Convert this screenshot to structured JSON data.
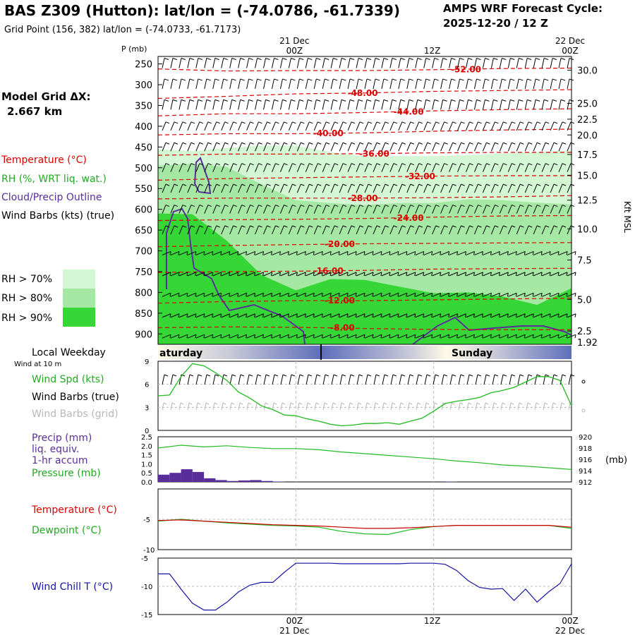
{
  "header": {
    "title": "BAS Z309 (Hutton):  lat/lon = (-74.0786, -61.7339)",
    "subtitle": "Grid Point (156, 382) lat/lon = (-74.0733, -61.7173)",
    "cycle_label": "AMPS WRF Forecast Cycle:",
    "cycle_value": "2025-12-20 / 12  Z"
  },
  "left_legend": {
    "model_grid_label": "Model Grid ΔX:",
    "model_grid_value": "2.667 km",
    "temperature": "Temperature (°C)",
    "rh": "RH (%, WRT liq. wat.)",
    "cloud": "Cloud/Precip Outline",
    "wind_barbs": "Wind Barbs (kts) (true)",
    "rh70": "RH > 70%",
    "rh80": "RH > 80%",
    "rh90": "RH > 90%",
    "local_weekday": "Local Weekday",
    "wind_at_10m": "Wind at 10 m",
    "wind_spd": "Wind Spd (kts)",
    "wind_barbs_true": "Wind Barbs (true)",
    "wind_barbs_grid": "Wind Barbs (grid)",
    "precip": "Precip (mm)",
    "liq_equiv": "liq. equiv.",
    "accum": "1-hr accum",
    "pressure": "Pressure (mb)",
    "temperature2": "Temperature (°C)",
    "dewpoint": "Dewpoint (°C)",
    "wind_chill": "Wind Chill T (°C)"
  },
  "time_axis": {
    "top_labels": [
      {
        "date": "21 Dec",
        "hour": "00Z",
        "hour_index": 12
      },
      {
        "date": "",
        "hour": "12Z",
        "hour_index": 24
      },
      {
        "date": "22 Dec",
        "hour": "00Z",
        "hour_index": 36
      }
    ],
    "pressure_axis_title": "P (mb)",
    "height_axis_title": "Kft MSL"
  },
  "weekday_bar": {
    "left_label": "aturday",
    "right_label": "Sunday"
  },
  "colors": {
    "temp_contour": "#dd0000",
    "rh70": "#d4f7d4",
    "rh80": "#a4e8a4",
    "rh90": "#36d636",
    "cloud": "#5a2e9a",
    "wind_line": "#22bb22",
    "precip_bar": "#5a2e9a",
    "wind_chill": "#1515a0",
    "temp_line": "#cc0000",
    "dew_line": "#22bb22"
  },
  "chart_data": [
    {
      "type": "heatmap",
      "title": "Time-height cross section",
      "x_range_hours": [
        0,
        36
      ],
      "ylabel": "P (mb)",
      "pressure_ticks": [
        250,
        300,
        350,
        400,
        450,
        500,
        550,
        600,
        650,
        700,
        750,
        800,
        850,
        900
      ],
      "height_ticks_kft": [
        {
          "label": "30.0",
          "p": 265
        },
        {
          "label": "25.0",
          "p": 345
        },
        {
          "label": "22.5",
          "p": 383
        },
        {
          "label": "20.0",
          "p": 421
        },
        {
          "label": "17.5",
          "p": 468
        },
        {
          "label": "15.0",
          "p": 518
        },
        {
          "label": "12.5",
          "p": 578
        },
        {
          "label": "10.0",
          "p": 647
        },
        {
          "label": "7.5",
          "p": 722
        },
        {
          "label": "5.0",
          "p": 817
        },
        {
          "label": "2.5",
          "p": 893
        }
      ],
      "surface_height_label": "1.92",
      "temperature_contours": [
        {
          "label": "-52.00",
          "label_hour": 25.5,
          "pressures": [
            262,
            267,
            266,
            266,
            264,
            261,
            260
          ]
        },
        {
          "label": "-48.00",
          "label_hour": 16.5,
          "pressures": [
            333,
            328,
            322,
            320,
            316,
            314,
            312
          ]
        },
        {
          "label": "-44.00",
          "label_hour": 20.5,
          "pressures": [
            375,
            370,
            370,
            367,
            363,
            360,
            358
          ]
        },
        {
          "label": "-40.00",
          "label_hour": 13.5,
          "pressures": [
            421,
            418,
            418,
            416,
            412,
            409,
            407
          ]
        },
        {
          "label": "-36.00",
          "label_hour": 17.5,
          "pressures": [
            470,
            467,
            467,
            466,
            464,
            463,
            463
          ]
        },
        {
          "label": "-32.00",
          "label_hour": 21.5,
          "pressures": [
            530,
            526,
            524,
            522,
            520,
            519,
            519
          ]
        },
        {
          "label": "-28.00",
          "label_hour": 16.5,
          "pressures": [
            575,
            573,
            573,
            573,
            572,
            570,
            567
          ]
        },
        {
          "label": "-24.00",
          "label_hour": 20.5,
          "pressures": [
            627,
            625,
            624,
            622,
            619,
            616,
            615
          ]
        },
        {
          "label": "-20.00",
          "label_hour": 14.5,
          "pressures": [
            690,
            687,
            685,
            683,
            682,
            681,
            680
          ]
        },
        {
          "label": "-16.00",
          "label_hour": 13.5,
          "pressures": [
            752,
            750,
            749,
            747,
            744,
            743,
            742
          ]
        },
        {
          "label": "-12.00",
          "label_hour": 14.5,
          "pressures": [
            826,
            822,
            820,
            820,
            818,
            816,
            814
          ]
        },
        {
          "label": "-8.00",
          "label_hour": 15.0,
          "pressures": [
            885,
            883,
            884,
            887,
            889,
            890,
            890
          ]
        }
      ],
      "rh70_top_pressure": [
        455,
        460,
        452,
        447,
        447,
        462,
        473,
        472,
        472,
        470,
        465,
        462,
        458
      ],
      "rh80_top_pressure": [
        495,
        490,
        498,
        540,
        578,
        585,
        590,
        585,
        585,
        576,
        578,
        584,
        588
      ],
      "rh90_top_pressure": [
        610,
        612,
        676,
        758,
        795,
        768,
        770,
        786,
        802,
        800,
        810,
        830,
        790
      ]
    },
    {
      "type": "line",
      "title": "Wind at 10 m",
      "ylabel": "Wind Spd (kts)",
      "ylim": [
        0,
        9
      ],
      "yticks": [
        0,
        3,
        6,
        9
      ],
      "x_hours": [
        0,
        1,
        2,
        3,
        4,
        5,
        6,
        7,
        8,
        9,
        10,
        11,
        12,
        13,
        14,
        15,
        16,
        17,
        18,
        19,
        20,
        21,
        22,
        23,
        24,
        25,
        26,
        27,
        28,
        29,
        30,
        31,
        32,
        33,
        34,
        35,
        36
      ],
      "values": [
        4.5,
        4.6,
        7.0,
        8.7,
        8.4,
        7.5,
        6.5,
        5.0,
        4.2,
        3.2,
        2.7,
        2.0,
        1.9,
        1.5,
        1.2,
        0.8,
        0.6,
        0.7,
        0.9,
        0.9,
        1.0,
        0.8,
        1.2,
        1.6,
        2.5,
        3.5,
        3.8,
        4.0,
        4.3,
        4.9,
        5.2,
        5.6,
        6.3,
        7.0,
        7.0,
        6.5,
        3.2
      ]
    },
    {
      "type": "line",
      "title": "Precip and Pressure",
      "ylabel": "Precip (mm) / Pressure (mb)",
      "precip_ylim": [
        0,
        2.5
      ],
      "precip_ticks": [
        "0.0",
        "0.5",
        "1.0",
        "1.5",
        "2.0",
        "2.5"
      ],
      "pressure_ylim": [
        912,
        920
      ],
      "pressure_ticks": [
        912,
        914,
        916,
        918,
        920
      ],
      "pressure_unit": "(mb)",
      "x_hours": [
        0,
        2,
        4,
        6,
        8,
        10,
        12,
        14,
        16,
        18,
        20,
        22,
        24,
        26,
        28,
        30,
        32,
        34,
        36
      ],
      "pressure": [
        918.0,
        918.5,
        918.2,
        918.4,
        918.1,
        917.9,
        917.9,
        917.7,
        917.3,
        917.0,
        916.7,
        916.4,
        916.1,
        915.7,
        915.4,
        915.0,
        914.8,
        914.5,
        914.2
      ],
      "precip": [
        {
          "hour": 0,
          "value": 0.4
        },
        {
          "hour": 1,
          "value": 0.5
        },
        {
          "hour": 2,
          "value": 0.7
        },
        {
          "hour": 3,
          "value": 0.55
        },
        {
          "hour": 4,
          "value": 0.2
        },
        {
          "hour": 5,
          "value": 0.1
        },
        {
          "hour": 6,
          "value": 0.05
        },
        {
          "hour": 7,
          "value": 0.08
        },
        {
          "hour": 8,
          "value": 0.1
        },
        {
          "hour": 9,
          "value": 0.05
        },
        {
          "hour": 10,
          "value": 0.02
        },
        {
          "hour": 25,
          "value": 0.02
        }
      ]
    },
    {
      "type": "line",
      "title": "Temperature and Dewpoint",
      "ylabel": "Temperature / Dewpoint (°C)",
      "ylim": [
        -10,
        0
      ],
      "yticks": [
        -10,
        -5
      ],
      "x_hours": [
        0,
        2,
        4,
        6,
        8,
        10,
        12,
        14,
        16,
        18,
        20,
        22,
        24,
        26,
        28,
        30,
        32,
        34,
        36
      ],
      "temperature": [
        -5.2,
        -5.1,
        -5.3,
        -5.5,
        -5.7,
        -5.9,
        -6.0,
        -6.1,
        -6.3,
        -6.5,
        -6.5,
        -6.4,
        -6.2,
        -6.0,
        -6.0,
        -6.0,
        -6.0,
        -6.0,
        -6.3
      ],
      "dewpoint": [
        -5.3,
        -5.0,
        -5.3,
        -5.6,
        -5.8,
        -6.0,
        -6.1,
        -6.3,
        -7.0,
        -7.4,
        -7.5,
        -6.7,
        -6.2,
        -6.0,
        -6.0,
        -6.0,
        -6.0,
        -6.0,
        -6.5
      ]
    },
    {
      "type": "line",
      "title": "Wind Chill",
      "ylabel": "Wind Chill T (°C)",
      "ylim": [
        -15,
        -5
      ],
      "yticks": [
        -15,
        -10,
        -5
      ],
      "x_hours": [
        0,
        1,
        2,
        3,
        4,
        5,
        6,
        7,
        8,
        9,
        10,
        11,
        12,
        13,
        14,
        15,
        16,
        17,
        18,
        19,
        20,
        21,
        22,
        23,
        24,
        25,
        26,
        27,
        28,
        29,
        30,
        31,
        32,
        33,
        34,
        35,
        36
      ],
      "values": [
        -7.8,
        -7.8,
        -10.5,
        -13.0,
        -14.2,
        -14.2,
        -12.8,
        -11.0,
        -9.8,
        -9.3,
        -9.3,
        -7.5,
        -5.9,
        -5.9,
        -5.9,
        -5.9,
        -6.0,
        -6.0,
        -6.0,
        -6.0,
        -6.0,
        -6.0,
        -5.9,
        -5.9,
        -5.9,
        -6.1,
        -7.2,
        -9.0,
        -10.2,
        -10.5,
        -10.4,
        -12.5,
        -10.5,
        -12.8,
        -11.0,
        -9.5,
        -6.0
      ]
    }
  ]
}
